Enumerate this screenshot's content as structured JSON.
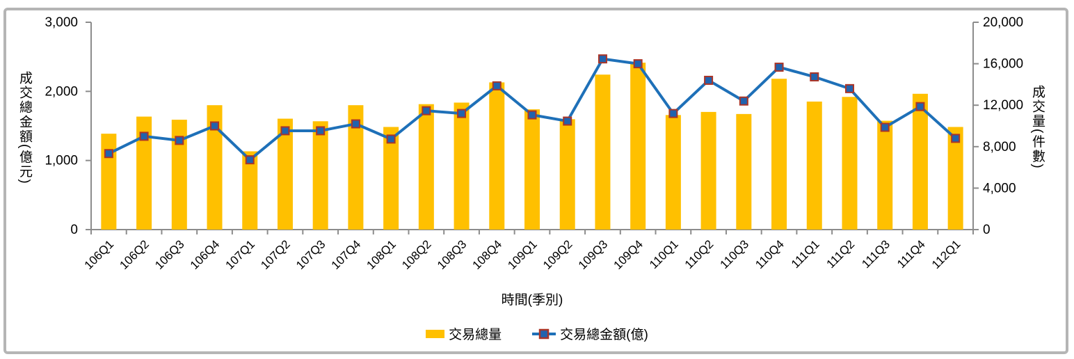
{
  "frame": {
    "border_color": "#b5b5b5",
    "background": "#ffffff"
  },
  "chart_data": {
    "type": "bar",
    "subtype": "bar-line-combo",
    "title": "",
    "categories": [
      "106Q1",
      "106Q2",
      "106Q3",
      "106Q4",
      "107Q1",
      "107Q2",
      "107Q3",
      "107Q4",
      "108Q1",
      "108Q2",
      "108Q3",
      "108Q4",
      "109Q1",
      "109Q2",
      "109Q3",
      "109Q4",
      "110Q1",
      "110Q2",
      "110Q3",
      "110Q4",
      "111Q1",
      "111Q2",
      "111Q3",
      "111Q4",
      "112Q1"
    ],
    "series": [
      {
        "name": "交易總量",
        "type": "bar",
        "axis": "right",
        "color": "#FFC000",
        "values": [
          9250,
          10900,
          10600,
          12000,
          7550,
          10700,
          10450,
          12000,
          9900,
          12100,
          12250,
          14200,
          11600,
          10650,
          14950,
          16100,
          11050,
          11350,
          11150,
          14550,
          12350,
          12800,
          10500,
          13100,
          9900
        ]
      },
      {
        "name": "交易總金額(億)",
        "type": "line",
        "axis": "left",
        "color": "#1E70B8",
        "marker": "square",
        "marker_fill": "#2163AE",
        "marker_border": "#AA3528",
        "values": [
          1100,
          1350,
          1290,
          1500,
          1010,
          1430,
          1430,
          1530,
          1310,
          1720,
          1680,
          2080,
          1660,
          1570,
          2470,
          2400,
          1680,
          2160,
          1860,
          2350,
          2210,
          2040,
          1480,
          1780,
          1320
        ]
      }
    ],
    "left_axis": {
      "title": "成交總金額(億元)",
      "min": 0,
      "max": 3000,
      "tick_values": [
        0,
        1000,
        2000,
        3000
      ],
      "tick_labels": [
        "0",
        "1,000",
        "2,000",
        "3,000"
      ]
    },
    "right_axis": {
      "title": "成交量(件數)",
      "min": 0,
      "max": 20000,
      "tick_values": [
        0,
        4000,
        8000,
        12000,
        16000,
        20000
      ],
      "tick_labels": [
        "0",
        "4,000",
        "8,000",
        "12,000",
        "16,000",
        "20,000"
      ]
    },
    "x_axis": {
      "title": "時間(季別)"
    },
    "legend": {
      "position": "bottom"
    },
    "grid": "off",
    "axis_color": "#8c8c8c"
  }
}
